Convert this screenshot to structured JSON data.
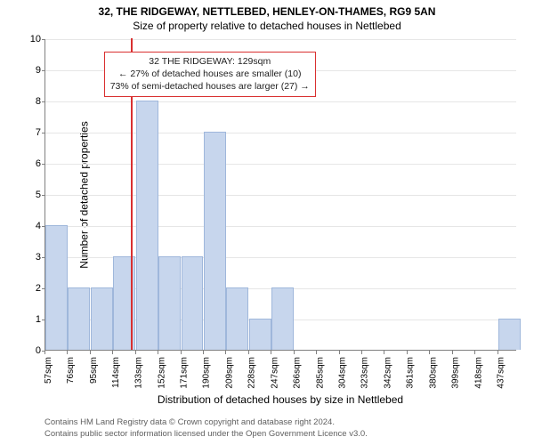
{
  "title": "32, THE RIDGEWAY, NETTLEBED, HENLEY-ON-THAMES, RG9 5AN",
  "subtitle": "Size of property relative to detached houses in Nettlebed",
  "xlabel": "Distribution of detached houses by size in Nettlebed",
  "ylabel": "Number of detached properties",
  "footer_line1": "Contains HM Land Registry data © Crown copyright and database right 2024.",
  "footer_line2": "Contains public sector information licensed under the Open Government Licence v3.0.",
  "chart": {
    "type": "bar",
    "ylim": [
      0,
      10
    ],
    "ytick_step": 1,
    "x_start": 57,
    "x_end": 453,
    "x_tick_step": 19,
    "x_tick_suffix": "sqm",
    "bin_width": 19,
    "bins": [
      {
        "x": 57,
        "count": 4
      },
      {
        "x": 76,
        "count": 2
      },
      {
        "x": 95,
        "count": 2
      },
      {
        "x": 114,
        "count": 3
      },
      {
        "x": 133,
        "count": 8
      },
      {
        "x": 152,
        "count": 3
      },
      {
        "x": 171,
        "count": 3
      },
      {
        "x": 190,
        "count": 7
      },
      {
        "x": 209,
        "count": 2
      },
      {
        "x": 228,
        "count": 1
      },
      {
        "x": 247,
        "count": 2
      },
      {
        "x": 266,
        "count": 0
      },
      {
        "x": 285,
        "count": 0
      },
      {
        "x": 304,
        "count": 0
      },
      {
        "x": 323,
        "count": 0
      },
      {
        "x": 342,
        "count": 0
      },
      {
        "x": 361,
        "count": 0
      },
      {
        "x": 380,
        "count": 0
      },
      {
        "x": 399,
        "count": 0
      },
      {
        "x": 418,
        "count": 0
      },
      {
        "x": 437,
        "count": 1
      }
    ],
    "bar_fill": "#c7d6ed",
    "bar_stroke": "#9fb7db",
    "grid_color": "#e6e6e6",
    "background_color": "#ffffff",
    "marker": {
      "x": 129,
      "color": "#d93030"
    },
    "annotation": {
      "line1": "32 THE RIDGEWAY: 129sqm",
      "line2": "← 27% of detached houses are smaller (10)",
      "line3": "73% of semi-detached houses are larger (27) →",
      "border_color": "#d93030",
      "text_color": "#222222",
      "x_center": 195,
      "y_top": 9.6
    }
  }
}
